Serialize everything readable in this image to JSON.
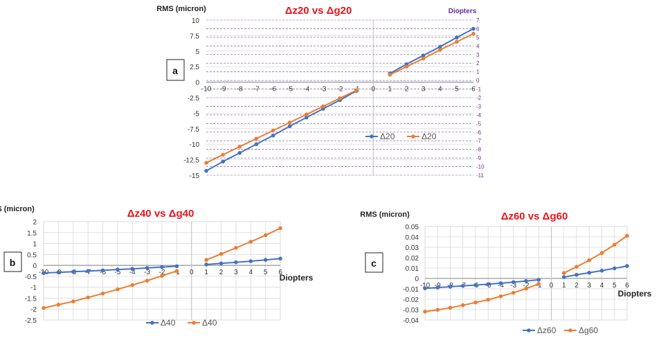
{
  "chart_data": [
    {
      "type": "line",
      "panel_label": "a",
      "title": "Δz20 vs Δg20",
      "ylabel": "RMS (micron)",
      "secondary_ylabel": "Diopters",
      "x_ticks": [
        -10,
        -9,
        -8,
        -7,
        -6,
        -5,
        -4,
        -3,
        -2,
        -1,
        0,
        1,
        2,
        3,
        4,
        5,
        6
      ],
      "ylim": [
        -15,
        10
      ],
      "y_ticks": [
        10,
        7.5,
        5,
        2.5,
        0,
        -2.5,
        -5,
        -7.5,
        -10,
        -12.5,
        -15
      ],
      "secondary_ylim": [
        -11,
        7
      ],
      "secondary_y_ticks": [
        7,
        6,
        5,
        4,
        3,
        2,
        1,
        0,
        -1,
        -2,
        -3,
        -4,
        -5,
        -6,
        -7,
        -8,
        -9,
        -10,
        -11
      ],
      "legend_position": "middle-right",
      "series": [
        {
          "name": "Δ20",
          "color": "#4472c4",
          "x": [
            -10,
            -9,
            -8,
            -7,
            -6,
            -5,
            -4,
            -3,
            -2,
            -1,
            1,
            2,
            3,
            4,
            5,
            6
          ],
          "values": [
            -14.3,
            -12.8,
            -11.4,
            -10.0,
            -8.6,
            -7.1,
            -5.7,
            -4.3,
            -2.9,
            -1.4,
            1.4,
            2.9,
            4.3,
            5.7,
            7.2,
            8.6
          ]
        },
        {
          "name": "Δ20",
          "color": "#ed7d31",
          "x": [
            -10,
            -9,
            -8,
            -7,
            -6,
            -5,
            -4,
            -3,
            -2,
            -1,
            1,
            2,
            3,
            4,
            5,
            6
          ],
          "values": [
            -13.0,
            -11.7,
            -10.4,
            -9.1,
            -7.8,
            -6.5,
            -5.2,
            -3.9,
            -2.6,
            -1.3,
            1.2,
            2.5,
            3.8,
            5.2,
            6.5,
            7.8
          ]
        }
      ]
    },
    {
      "type": "line",
      "panel_label": "b",
      "title": "Δz40 vs Δg40",
      "ylabel": "RMS (micron)",
      "xlabel": "Diopters",
      "x_ticks": [
        -10,
        -9,
        -8,
        -7,
        -6,
        -5,
        -4,
        -3,
        -2,
        -1,
        0,
        1,
        2,
        3,
        4,
        5,
        6
      ],
      "ylim": [
        -2.5,
        2
      ],
      "y_ticks": [
        2,
        1.5,
        1,
        0.5,
        0,
        -0.5,
        -1,
        -1.5,
        -2,
        -2.5
      ],
      "legend_position": "bottom-center",
      "series": [
        {
          "name": "Δ40",
          "color": "#4472c4",
          "x": [
            -10,
            -9,
            -8,
            -7,
            -6,
            -5,
            -4,
            -3,
            -2,
            -1,
            1,
            2,
            3,
            4,
            5,
            6
          ],
          "values": [
            -0.35,
            -0.32,
            -0.29,
            -0.26,
            -0.23,
            -0.19,
            -0.16,
            -0.12,
            -0.08,
            -0.04,
            0.04,
            0.09,
            0.14,
            0.19,
            0.25,
            0.31
          ]
        },
        {
          "name": "Δ40",
          "color": "#ed7d31",
          "x": [
            -10,
            -9,
            -8,
            -7,
            -6,
            -5,
            -4,
            -3,
            -2,
            -1,
            1,
            2,
            3,
            4,
            5,
            6
          ],
          "values": [
            -1.95,
            -1.8,
            -1.65,
            -1.47,
            -1.29,
            -1.1,
            -0.9,
            -0.7,
            -0.48,
            -0.26,
            0.25,
            0.52,
            0.8,
            1.08,
            1.38,
            1.7
          ]
        }
      ]
    },
    {
      "type": "line",
      "panel_label": "c",
      "title": "Δz60 vs Δg60",
      "ylabel": "RMS (micron)",
      "xlabel": "Diopters",
      "x_ticks": [
        -10,
        -9,
        -8,
        -7,
        -6,
        -5,
        -4,
        -3,
        -2,
        -1,
        0,
        1,
        2,
        3,
        4,
        5,
        6
      ],
      "ylim": [
        -0.04,
        0.05
      ],
      "y_ticks": [
        0.05,
        0.04,
        0.03,
        0.02,
        0.01,
        0,
        -0.01,
        -0.02,
        -0.03,
        -0.04
      ],
      "legend_position": "bottom-center",
      "series": [
        {
          "name": "Δz60",
          "color": "#4472c4",
          "x": [
            -10,
            -9,
            -8,
            -7,
            -6,
            -5,
            -4,
            -3,
            -2,
            -1,
            1,
            2,
            3,
            4,
            5,
            6
          ],
          "values": [
            -0.0095,
            -0.0088,
            -0.008,
            -0.0072,
            -0.0064,
            -0.0055,
            -0.0046,
            -0.0036,
            -0.0025,
            -0.0013,
            0.0013,
            0.0035,
            0.0055,
            0.0075,
            0.0097,
            0.012
          ]
        },
        {
          "name": "Δg60",
          "color": "#ed7d31",
          "x": [
            -10,
            -9,
            -8,
            -7,
            -6,
            -5,
            -4,
            -3,
            -2,
            -1,
            1,
            2,
            3,
            4,
            5,
            6
          ],
          "values": [
            -0.032,
            -0.0302,
            -0.0282,
            -0.0258,
            -0.0232,
            -0.0205,
            -0.0172,
            -0.0138,
            -0.0098,
            -0.0052,
            0.0052,
            0.0112,
            0.0175,
            0.0245,
            0.0325,
            0.041
          ]
        }
      ]
    }
  ]
}
